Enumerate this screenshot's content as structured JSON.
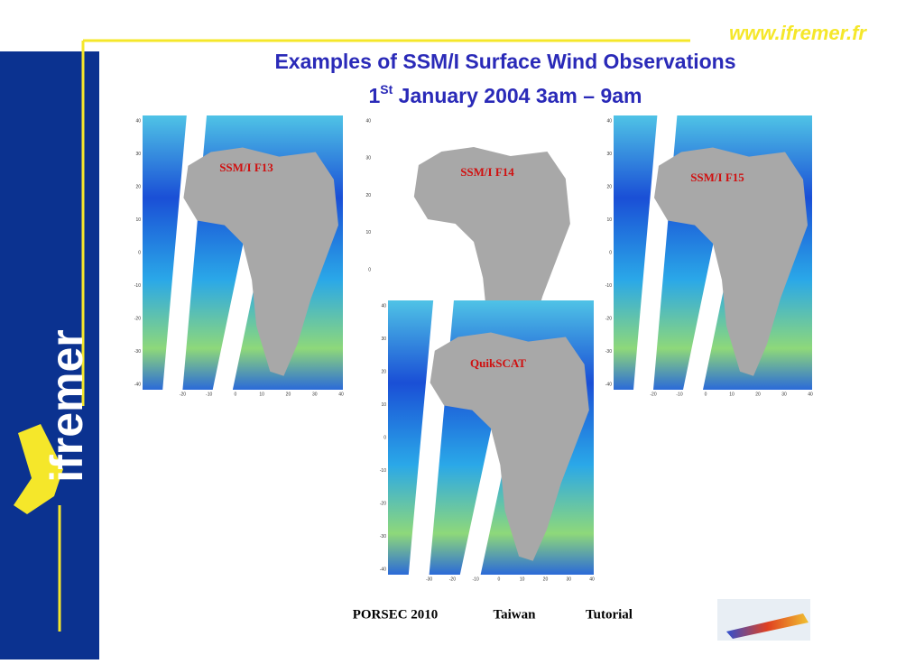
{
  "header": {
    "url": "www.ifremer.fr",
    "title": "Examples of SSM/I Surface Wind Observations",
    "subtitle_prefix": "1",
    "subtitle_sup": "St",
    "subtitle_rest": " January 2004 3am – 9am"
  },
  "logo": "ifremer",
  "panels": [
    {
      "label": "SSM/I F13",
      "yticks": [
        40,
        30,
        20,
        10,
        0,
        -10,
        -20,
        -30,
        -40
      ],
      "xticks": [
        -20,
        -10,
        0,
        10,
        20,
        30,
        40
      ]
    },
    {
      "label": "SSM/I F14",
      "yticks": [
        40,
        30,
        20,
        10,
        0
      ],
      "xticks": []
    },
    {
      "label": "SSM/I F15",
      "yticks": [
        40,
        30,
        20,
        10,
        0,
        -10,
        -20,
        -30,
        -40
      ],
      "xticks": [
        -20,
        -10,
        0,
        10,
        20,
        30,
        40
      ]
    },
    {
      "label": "QuikSCAT",
      "yticks": [
        40,
        30,
        20,
        10,
        0,
        -10,
        -20,
        -30,
        -40
      ],
      "xticks": [
        -30,
        -20,
        -10,
        0,
        10,
        20,
        30,
        40
      ]
    }
  ],
  "footer": {
    "items": [
      "PORSEC 2010",
      "Taiwan",
      "Tutorial"
    ]
  }
}
